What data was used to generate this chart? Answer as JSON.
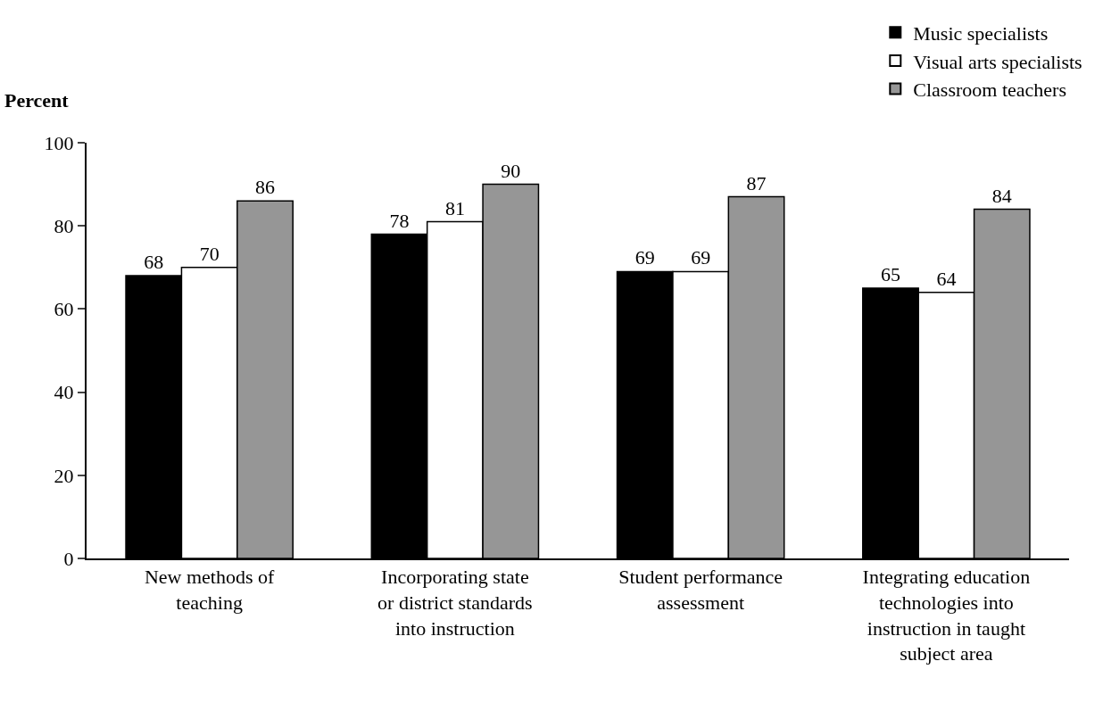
{
  "chart_data": {
    "type": "bar",
    "ylabel": "Percent",
    "categories": [
      "New methods of teaching",
      "Incorporating state or district standards into instruction",
      "Student performance assessment",
      "Integrating education technologies into instruction in taught subject area"
    ],
    "series": [
      {
        "name": "Music specialists",
        "color": "#000000",
        "values": [
          68,
          78,
          69,
          65
        ]
      },
      {
        "name": "Visual arts specialists",
        "color": "#ffffff",
        "values": [
          70,
          81,
          69,
          64
        ]
      },
      {
        "name": "Classroom teachers",
        "color": "#969696",
        "values": [
          86,
          90,
          87,
          84
        ]
      }
    ],
    "ylim": [
      0,
      100
    ],
    "yticks": [
      0,
      20,
      40,
      60,
      80,
      100
    ],
    "legend": "top right",
    "data_labels": true
  }
}
